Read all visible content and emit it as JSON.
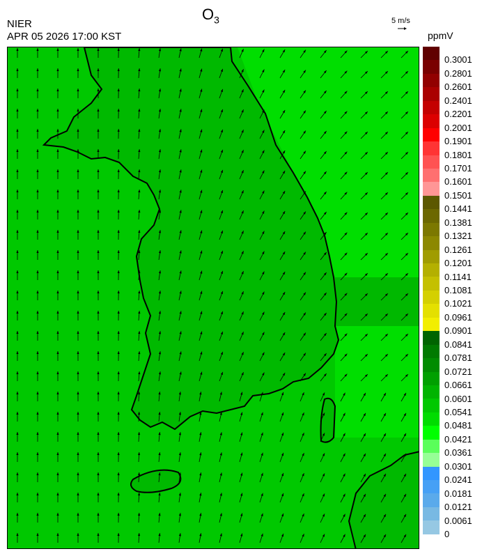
{
  "header": {
    "title_main": "O",
    "title_sub": "3",
    "agency": "NIER",
    "datetime": "APR 05 2026 17:00 KST",
    "wind_scale_label": "5 m/s",
    "unit": "ppmV"
  },
  "legend": {
    "labels": [
      "0.3001",
      "0.2801",
      "0.2601",
      "0.2401",
      "0.2201",
      "0.2001",
      "0.1901",
      "0.1801",
      "0.1701",
      "0.1601",
      "0.1501",
      "0.1441",
      "0.1381",
      "0.1321",
      "0.1261",
      "0.1201",
      "0.1141",
      "0.1081",
      "0.1021",
      "0.0961",
      "0.0901",
      "0.0841",
      "0.0781",
      "0.0721",
      "0.0661",
      "0.0601",
      "0.0541",
      "0.0481",
      "0.0421",
      "0.0361",
      "0.0301",
      "0.0241",
      "0.0181",
      "0.0121",
      "0.0061",
      "0"
    ],
    "colors": [
      "#600000",
      "#7a0000",
      "#920000",
      "#aa0000",
      "#c40000",
      "#dc0000",
      "#ff0000",
      "#ff3434",
      "#ff5252",
      "#ff7070",
      "#ff9696",
      "#5c5800",
      "#6c6800",
      "#7c7800",
      "#8c8800",
      "#a09c00",
      "#b4b000",
      "#c4c000",
      "#d4d000",
      "#e4e000",
      "#f2ee00",
      "#006400",
      "#007a00",
      "#008c00",
      "#00a000",
      "#00b400",
      "#00c800",
      "#00dc00",
      "#00ff00",
      "#5aff5a",
      "#96ff96",
      "#3296ff",
      "#46a0f5",
      "#5aaaeb",
      "#78b9e3",
      "#96c8e3"
    ]
  },
  "map": {
    "background_color": "#00c800",
    "land_color": "#00b900",
    "east_sea_color": "#00e000",
    "coast_color": "#000000"
  }
}
